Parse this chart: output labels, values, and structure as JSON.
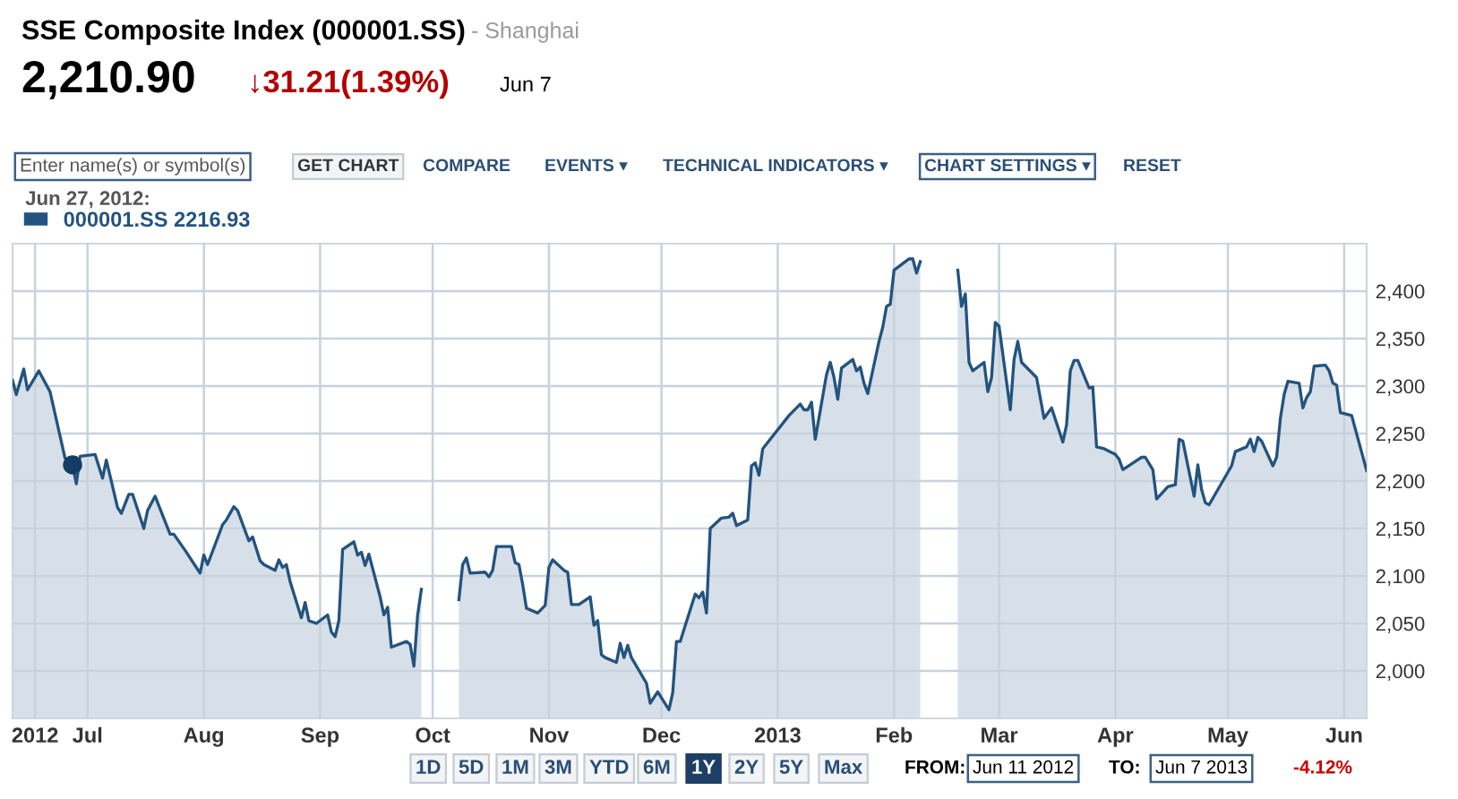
{
  "chart_data": {
    "type": "area",
    "title": "SSE Composite Index (000001.SS)",
    "subtitle": "- Shanghai",
    "legend_title": "Jun 27, 2012:",
    "annotations": [
      "2,210.90",
      "↓31.21(1.39%)",
      "Jun 7",
      "Enter name(s) or symbol(s)",
      "GET CHART",
      "COMPARE",
      "EVENTS ▾",
      "TECHNICAL INDICATORS ▾",
      "CHART SETTINGS ▾",
      "RESET",
      "1D",
      "5D",
      "1M",
      "3M",
      "YTD",
      "6M",
      "1Y",
      "2Y",
      "5Y",
      "Max",
      "FROM:",
      "Jun 11 2012",
      "TO:",
      "Jun 7 2013",
      "-4.12%"
    ],
    "x": [
      "2012-06-11",
      "2012-06-12",
      "2012-06-14",
      "2012-06-15",
      "2012-06-18",
      "2012-06-21",
      "2012-06-25",
      "2012-06-26",
      "2012-06-27",
      "2012-06-28",
      "2012-06-29",
      "2012-07-03",
      "2012-07-05",
      "2012-07-06",
      "2012-07-09",
      "2012-07-10",
      "2012-07-12",
      "2012-07-13",
      "2012-07-16",
      "2012-07-17",
      "2012-07-19",
      "2012-07-23",
      "2012-07-24",
      "2012-07-27",
      "2012-07-30",
      "2012-07-31",
      "2012-08-01",
      "2012-08-02",
      "2012-08-06",
      "2012-08-07",
      "2012-08-09",
      "2012-08-10",
      "2012-08-13",
      "2012-08-14",
      "2012-08-16",
      "2012-08-17",
      "2012-08-20",
      "2012-08-21",
      "2012-08-22",
      "2012-08-23",
      "2012-08-24",
      "2012-08-27",
      "2012-08-28",
      "2012-08-29",
      "2012-08-31",
      "2012-09-03",
      "2012-09-04",
      "2012-09-05",
      "2012-09-06",
      "2012-09-07",
      "2012-09-10",
      "2012-09-11",
      "2012-09-12",
      "2012-09-13",
      "2012-09-14",
      "2012-09-17",
      "2012-09-18",
      "2012-09-19",
      "2012-09-20",
      "2012-09-24",
      "2012-09-25",
      "2012-09-26",
      "2012-09-27",
      "2012-09-28",
      "2012-10-03",
      "2012-10-08",
      "2012-10-09",
      "2012-10-10",
      "2012-10-11",
      "2012-10-15",
      "2012-10-16",
      "2012-10-17",
      "2012-10-18",
      "2012-10-22",
      "2012-10-23",
      "2012-10-24",
      "2012-10-25",
      "2012-10-26",
      "2012-10-29",
      "2012-10-31",
      "2012-11-01",
      "2012-11-02",
      "2012-11-05",
      "2012-11-06",
      "2012-11-07",
      "2012-11-09",
      "2012-11-12",
      "2012-11-13",
      "2012-11-14",
      "2012-11-15",
      "2012-11-16",
      "2012-11-19",
      "2012-11-20",
      "2012-11-21",
      "2012-11-22",
      "2012-11-23",
      "2012-11-27",
      "2012-11-28",
      "2012-11-30",
      "2012-12-03",
      "2012-12-04",
      "2012-12-05",
      "2012-12-06",
      "2012-12-10",
      "2012-12-11",
      "2012-12-12",
      "2012-12-13",
      "2012-12-14",
      "2012-12-17",
      "2012-12-19",
      "2012-12-20",
      "2012-12-21",
      "2012-12-24",
      "2012-12-25",
      "2012-12-26",
      "2012-12-27",
      "2012-12-28",
      "2013-01-04",
      "2013-01-07",
      "2013-01-08",
      "2013-01-09",
      "2013-01-10",
      "2013-01-11",
      "2013-01-14",
      "2013-01-15",
      "2013-01-16",
      "2013-01-17",
      "2013-01-18",
      "2013-01-21",
      "2013-01-22",
      "2013-01-23",
      "2013-01-24",
      "2013-01-25",
      "2013-01-28",
      "2013-01-29",
      "2013-01-30",
      "2013-01-31",
      "2013-02-01",
      "2013-02-04",
      "2013-02-05",
      "2013-02-06",
      "2013-02-07",
      "2013-02-08",
      "2013-02-12",
      "2013-02-18",
      "2013-02-19",
      "2013-02-20",
      "2013-02-21",
      "2013-02-22",
      "2013-02-25",
      "2013-02-26",
      "2013-02-27",
      "2013-02-28",
      "2013-03-01",
      "2013-03-04",
      "2013-03-05",
      "2013-03-06",
      "2013-03-07",
      "2013-03-11",
      "2013-03-13",
      "2013-03-15",
      "2013-03-18",
      "2013-03-19",
      "2013-03-20",
      "2013-03-21",
      "2013-03-22",
      "2013-03-25",
      "2013-03-26",
      "2013-03-27",
      "2013-03-29",
      "2013-04-01",
      "2013-04-02",
      "2013-04-03",
      "2013-04-08",
      "2013-04-09",
      "2013-04-11",
      "2013-04-12",
      "2013-04-15",
      "2013-04-17",
      "2013-04-18",
      "2013-04-19",
      "2013-04-22",
      "2013-04-23",
      "2013-04-24",
      "2013-04-25",
      "2013-04-26",
      "2013-05-02",
      "2013-05-03",
      "2013-05-06",
      "2013-05-07",
      "2013-05-08",
      "2013-05-09",
      "2013-05-10",
      "2013-05-13",
      "2013-05-14",
      "2013-05-15",
      "2013-05-16",
      "2013-05-17",
      "2013-05-20",
      "2013-05-21",
      "2013-05-22",
      "2013-05-23",
      "2013-05-24",
      "2013-05-27",
      "2013-05-28",
      "2013-05-29",
      "2013-05-30",
      "2013-05-31",
      "2013-06-03",
      "2013-06-07"
    ],
    "series": [
      {
        "name": "000001.SS 2216.93",
        "color": "#23537f",
        "values": [
          2306,
          2291,
          2318,
          2296,
          2316,
          2294,
          2224,
          2222,
          2217,
          2197,
          2226,
          2228,
          2203,
          2222,
          2172,
          2166,
          2186,
          2186,
          2150,
          2169,
          2184,
          2144,
          2144,
          2127,
          2109,
          2103,
          2122,
          2112,
          2154,
          2159,
          2173,
          2169,
          2137,
          2141,
          2116,
          2112,
          2106,
          2117,
          2109,
          2112,
          2094,
          2056,
          2072,
          2053,
          2050,
          2059,
          2041,
          2036,
          2053,
          2128,
          2136,
          2122,
          2125,
          2111,
          2123,
          2078,
          2059,
          2067,
          2025,
          2031,
          2028,
          2005,
          2059,
          2086,
          null,
          2075,
          2112,
          2119,
          2103,
          2104,
          2099,
          2106,
          2131,
          2131,
          2114,
          2112,
          2091,
          2066,
          2061,
          2069,
          2109,
          2117,
          2106,
          2104,
          2070,
          2070,
          2078,
          2048,
          2053,
          2017,
          2014,
          2009,
          2029,
          2014,
          2027,
          2014,
          1987,
          1966,
          1978,
          1959,
          1977,
          2031,
          2031,
          2081,
          2077,
          2083,
          2061,
          2150,
          2161,
          2162,
          2166,
          2153,
          2159,
          2216,
          2219,
          2206,
          2234,
          2269,
          2281,
          2275,
          2275,
          2283,
          2244,
          2312,
          2325,
          2309,
          2286,
          2319,
          2328,
          2316,
          2320,
          2303,
          2292,
          2347,
          2362,
          2384,
          2386,
          2422,
          2431,
          2434,
          2434,
          2419,
          2431,
          null,
          2422,
          2384,
          2397,
          2325,
          2316,
          2325,
          2294,
          2309,
          2367,
          2363,
          2275,
          2328,
          2347,
          2325,
          2309,
          2266,
          2277,
          2241,
          2259,
          2316,
          2327,
          2327,
          2298,
          2299,
          2236,
          2234,
          2228,
          2223,
          2212,
          2225,
          2225,
          2212,
          2181,
          2194,
          2196,
          2244,
          2242,
          2184,
          2217,
          2191,
          2177,
          2175,
          2216,
          2231,
          2236,
          2244,
          2231,
          2246,
          2242,
          2216,
          2225,
          2266,
          2291,
          2305,
          2303,
          2277,
          2288,
          2294,
          2321,
          2322,
          2316,
          2303,
          2301,
          2272,
          2269,
          2211
        ]
      },
      {
        "type": "scatter",
        "marker": "circle",
        "color": "#143c64",
        "x": [
          "2012-06-27"
        ],
        "values": [
          2217
        ]
      }
    ],
    "xlim": [
      "2012-06-11",
      "2013-06-07"
    ],
    "xticks": [
      {
        "value": "2012-06-17",
        "label": "2012"
      },
      {
        "value": "2012-07-01",
        "label": "Jul"
      },
      {
        "value": "2012-08-01",
        "label": "Aug"
      },
      {
        "value": "2012-09-01",
        "label": "Sep"
      },
      {
        "value": "2012-10-01",
        "label": "Oct"
      },
      {
        "value": "2012-11-01",
        "label": "Nov"
      },
      {
        "value": "2012-12-01",
        "label": "Dec"
      },
      {
        "value": "2013-01-01",
        "label": "2013"
      },
      {
        "value": "2013-02-01",
        "label": "Feb"
      },
      {
        "value": "2013-03-01",
        "label": "Mar"
      },
      {
        "value": "2013-04-01",
        "label": "Apr"
      },
      {
        "value": "2013-05-01",
        "label": "May"
      },
      {
        "value": "2013-06-01",
        "label": "Jun"
      }
    ],
    "ylim": [
      1950,
      2450
    ],
    "yticks": [
      {
        "value": 2000,
        "label": "2,000"
      },
      {
        "value": 2050,
        "label": "2,050"
      },
      {
        "value": 2100,
        "label": "2,100"
      },
      {
        "value": 2150,
        "label": "2,150"
      },
      {
        "value": 2200,
        "label": "2,200"
      },
      {
        "value": 2250,
        "label": "2,250"
      },
      {
        "value": 2300,
        "label": "2,300"
      },
      {
        "value": 2350,
        "label": "2,350"
      },
      {
        "value": 2400,
        "label": "2,400"
      }
    ],
    "grid": true,
    "legend": "top left",
    "line_style": "solid"
  }
}
